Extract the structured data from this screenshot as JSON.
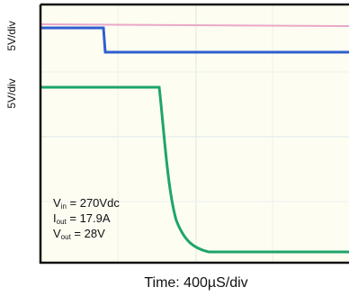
{
  "channel_scales": [
    "5V/div",
    "5V/div"
  ],
  "annotations": [
    {
      "main": "V",
      "sub": "in",
      "rest": " = 270Vdc"
    },
    {
      "main": "I",
      "sub": "out",
      "rest": " = 17.9A"
    },
    {
      "main": "V",
      "sub": "out",
      "rest": " = 28V"
    }
  ],
  "x_label": "Time: 400µS/div"
}
